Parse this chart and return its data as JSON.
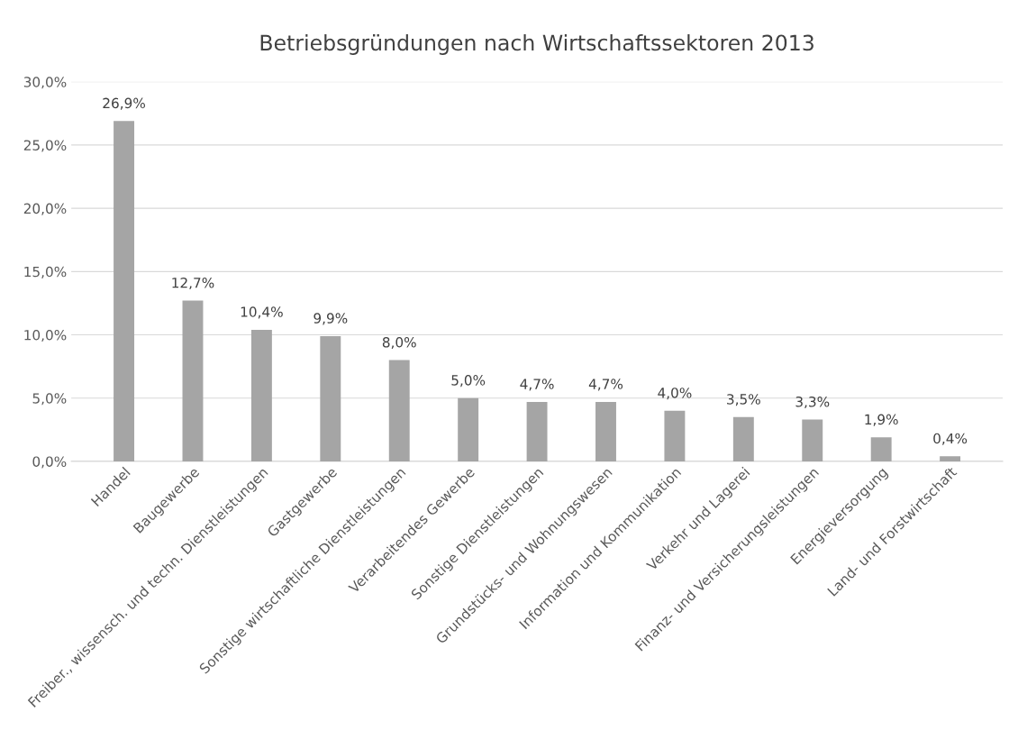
{
  "chart_data": {
    "type": "bar",
    "title": "Betriebsgründungen nach Wirtschaftssektoren 2013",
    "categories": [
      "Handel",
      "Baugewerbe",
      "Freiber., wissensch. und techn. Dienstleistungen",
      "Gastgewerbe",
      "Sonstige wirtschaftliche Dienstleistungen",
      "Verarbeitendes Gewerbe",
      "Sonstige Dienstleistungen",
      "Grundstücks- und Wohnungswesen",
      "Information und Kommunikation",
      "Verkehr und Lagerei",
      "Finanz- und Versicherungsleistungen",
      "Energieversorgung",
      "Land- und Forstwirtschaft"
    ],
    "values": [
      26.9,
      12.7,
      10.4,
      9.9,
      8.0,
      5.0,
      4.7,
      4.7,
      4.0,
      3.5,
      3.3,
      1.9,
      0.4
    ],
    "value_labels": [
      "26,9%",
      "12,7%",
      "10,4%",
      "9,9%",
      "8,0%",
      "5,0%",
      "4,7%",
      "4,7%",
      "4,0%",
      "3,5%",
      "3,3%",
      "1,9%",
      "0,4%"
    ],
    "color": "#a5a5a5",
    "ylim": [
      0,
      30
    ],
    "yticks": [
      {
        "value": 0,
        "label": "0,0%"
      },
      {
        "value": 5,
        "label": "5,0%"
      },
      {
        "value": 10,
        "label": "10,0%"
      },
      {
        "value": 15,
        "label": "15,0%"
      },
      {
        "value": 20,
        "label": "20,0%"
      },
      {
        "value": 25,
        "label": "25,0%"
      },
      {
        "value": 30,
        "label": "30,0%"
      }
    ],
    "grid": "y",
    "legend": false
  }
}
